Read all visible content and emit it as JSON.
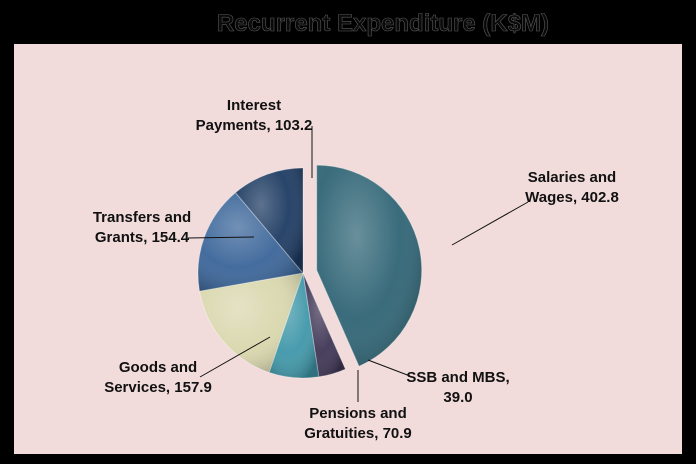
{
  "chart_data": {
    "type": "pie",
    "title": "Recurrent Expenditure (K$M)",
    "slices": [
      {
        "label_lines": [
          "Salaries and",
          "Wages, 402.8"
        ],
        "value": 402.8,
        "color": "#2f6475",
        "exploded": true
      },
      {
        "label_lines": [
          "SSB and MBS,",
          "39.0"
        ],
        "value": 39.0,
        "color": "#3f3555",
        "exploded": false
      },
      {
        "label_lines": [
          "Pensions and",
          "Gratuities, 70.9"
        ],
        "value": 70.9,
        "color": "#3f97a9",
        "exploded": false
      },
      {
        "label_lines": [
          "Goods and",
          "Services, 157.9"
        ],
        "value": 157.9,
        "color": "#d9d7ad",
        "exploded": false
      },
      {
        "label_lines": [
          "Transfers and",
          "Grants, 154.4"
        ],
        "value": 154.4,
        "color": "#3a6599",
        "exploded": false
      },
      {
        "label_lines": [
          "Interest",
          "Payments, 103.2"
        ],
        "value": 103.2,
        "color": "#1d3b62",
        "exploded": false
      }
    ],
    "legend": "none",
    "data_labels": "outside with leader lines"
  },
  "colors": {
    "frame": "#000000",
    "plot_background": "#f2dcdb",
    "leader_line": "#111111"
  }
}
